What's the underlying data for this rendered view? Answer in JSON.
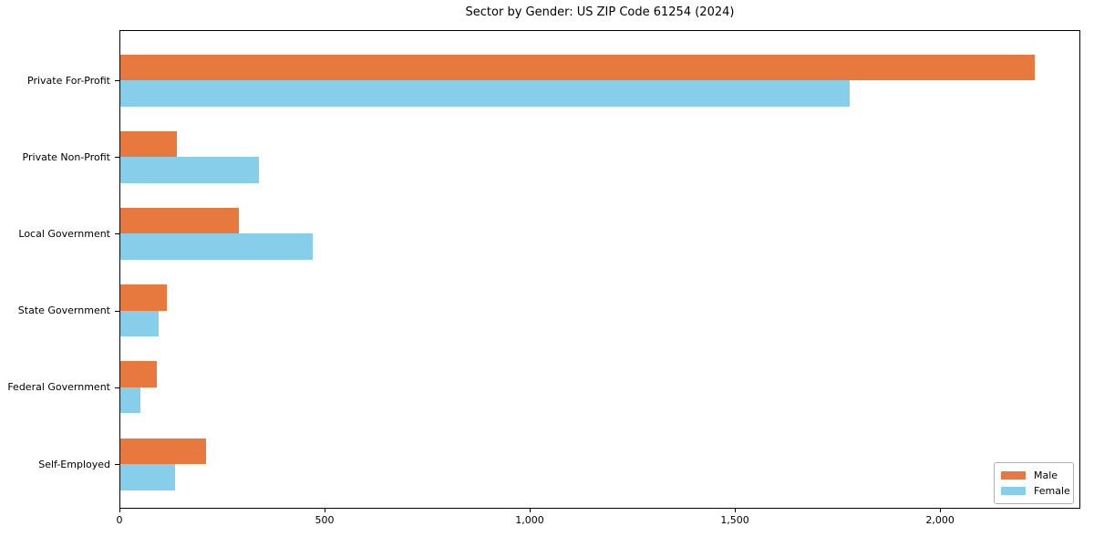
{
  "chart_data": {
    "type": "bar",
    "orientation": "horizontal",
    "title": "Sector by Gender: US ZIP Code 61254 (2024)",
    "categories": [
      "Private For-Profit",
      "Private Non-Profit",
      "Local Government",
      "State Government",
      "Federal Government",
      "Self-Employed"
    ],
    "series": [
      {
        "name": "Male",
        "color": "#e8793e",
        "values": [
          2230,
          140,
          290,
          115,
          90,
          210
        ]
      },
      {
        "name": "Female",
        "color": "#87ceeb",
        "values": [
          1780,
          340,
          470,
          95,
          50,
          135
        ]
      }
    ],
    "xlabel": "",
    "ylabel": "",
    "xlim": [
      0,
      2342
    ],
    "xticks": [
      {
        "value": 0,
        "label": "0"
      },
      {
        "value": 500,
        "label": "500"
      },
      {
        "value": 1000,
        "label": "1,000"
      },
      {
        "value": 1500,
        "label": "1,500"
      },
      {
        "value": 2000,
        "label": "2,000"
      }
    ],
    "grid": false,
    "legend": {
      "position": "lower-right"
    }
  }
}
